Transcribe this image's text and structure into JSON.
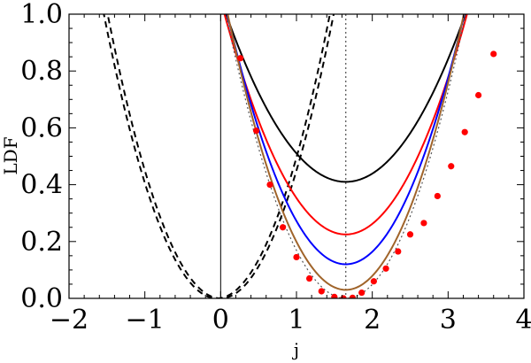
{
  "chart_data": {
    "type": "line",
    "title": "",
    "xlabel": "j",
    "ylabel": "LDF",
    "xlim": [
      -2,
      4
    ],
    "ylim": [
      0,
      1
    ],
    "x_ticks": [
      {
        "value": -2,
        "label": "−2"
      },
      {
        "value": -1,
        "label": "−1"
      },
      {
        "value": 0,
        "label": "0"
      },
      {
        "value": 1,
        "label": "1"
      },
      {
        "value": 2,
        "label": "2"
      },
      {
        "value": 3,
        "label": "3"
      },
      {
        "value": 4,
        "label": "4"
      }
    ],
    "y_ticks": [
      {
        "value": 0,
        "label": "0.0"
      },
      {
        "value": 0.2,
        "label": "0.2"
      },
      {
        "value": 0.4,
        "label": "0.4"
      },
      {
        "value": 0.6,
        "label": "0.6"
      },
      {
        "value": 0.8,
        "label": "0.8"
      },
      {
        "value": 1,
        "label": "1.0"
      }
    ],
    "reference_lines": [
      {
        "orientation": "vertical",
        "x": 0,
        "color": "#000000",
        "style": "solid"
      },
      {
        "orientation": "vertical",
        "x": 1.65,
        "color": "#666666",
        "style": "dotted"
      }
    ],
    "series": [
      {
        "style": "dashed",
        "color": "#000000",
        "kind": "parabola",
        "vertex_x": -0.05,
        "vertex_y": 0.0,
        "curvature": 0.45
      },
      {
        "style": "dashed",
        "color": "#000000",
        "kind": "parabola",
        "vertex_x": 0.0,
        "vertex_y": 0.0,
        "curvature": 0.45
      },
      {
        "style": "solid",
        "color": "#000000",
        "kind": "parabola",
        "vertex_x": 1.65,
        "vertex_y": 0.41,
        "curvature": 0.237
      },
      {
        "style": "solid",
        "color": "#ff0000",
        "kind": "parabola",
        "vertex_x": 1.65,
        "vertex_y": 0.225,
        "curvature": 0.303
      },
      {
        "style": "solid",
        "color": "#0000ff",
        "kind": "parabola",
        "vertex_x": 1.65,
        "vertex_y": 0.12,
        "curvature": 0.36
      },
      {
        "style": "solid",
        "color": "#a0642a",
        "kind": "parabola",
        "vertex_x": 1.65,
        "vertex_y": 0.03,
        "curvature": 0.4
      },
      {
        "style": "dotted",
        "color": "#555555",
        "kind": "parabola",
        "vertex_x": 1.65,
        "vertex_y": 0.0,
        "curvature": 0.4
      },
      {
        "style": "markers",
        "color": "#ff0000",
        "kind": "points",
        "x": [
          0.26,
          0.47,
          0.65,
          0.82,
          1.0,
          1.17,
          1.33,
          1.5,
          1.62,
          1.74,
          1.86,
          2.02,
          2.18,
          2.34,
          2.5,
          2.68,
          2.86,
          3.04,
          3.22,
          3.4,
          3.6
        ],
        "y": [
          0.845,
          0.59,
          0.4,
          0.25,
          0.145,
          0.07,
          0.025,
          0.005,
          0.0,
          0.002,
          0.02,
          0.06,
          0.105,
          0.165,
          0.225,
          0.265,
          0.36,
          0.465,
          0.585,
          0.715,
          0.86
        ]
      }
    ]
  }
}
